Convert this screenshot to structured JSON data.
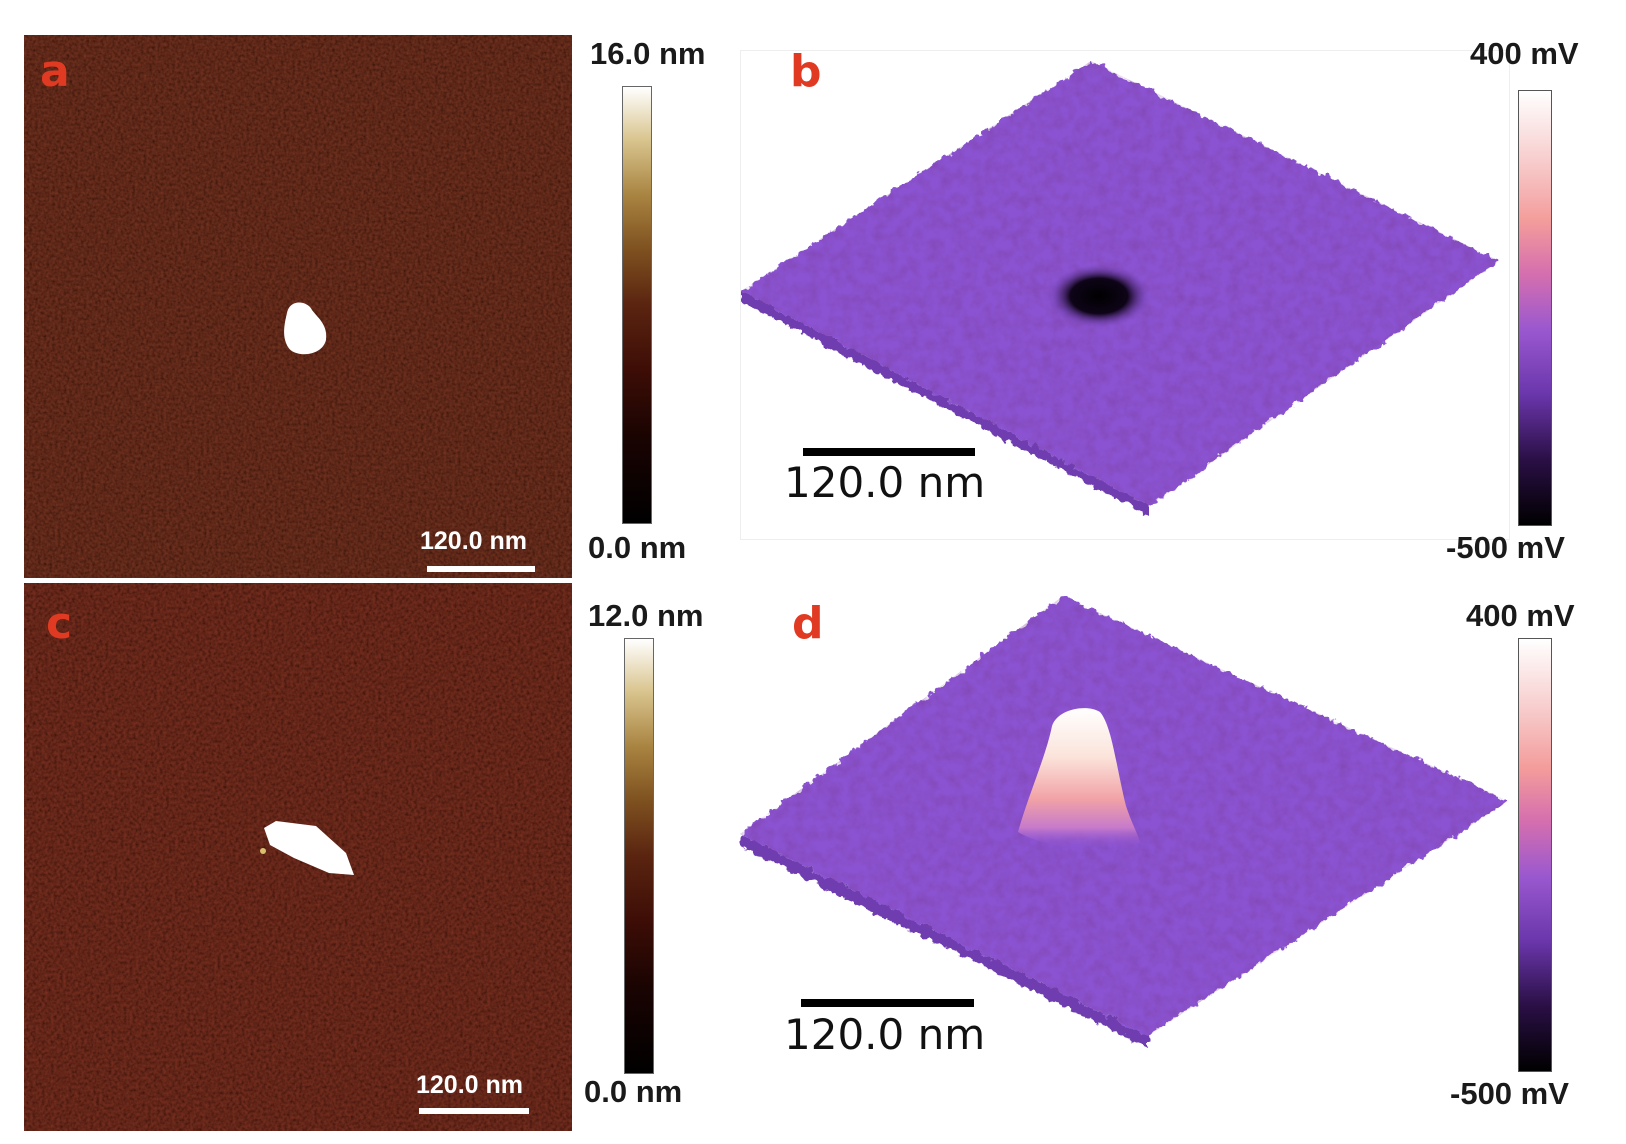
{
  "panels": {
    "a": {
      "letter": "a",
      "scale_bar": "120.0 nm",
      "colorbar": {
        "max": "16.0 nm",
        "min": "0.0 nm"
      }
    },
    "b": {
      "letter": "b",
      "scale_bar": "120.0 nm",
      "colorbar": {
        "max": "400 mV",
        "min": "-500 mV"
      }
    },
    "c": {
      "letter": "c",
      "scale_bar": "120.0 nm",
      "colorbar": {
        "max": "12.0 nm",
        "min": "0.0 nm"
      }
    },
    "d": {
      "letter": "d",
      "scale_bar": "120.0 nm",
      "colorbar": {
        "max": "400 mV",
        "min": "-500 mV"
      }
    }
  },
  "colors": {
    "letter": "#e03a22",
    "height_background": "#2e0b05",
    "surface_purple": "#8a4fd0",
    "feature_white": "#ffffff"
  }
}
